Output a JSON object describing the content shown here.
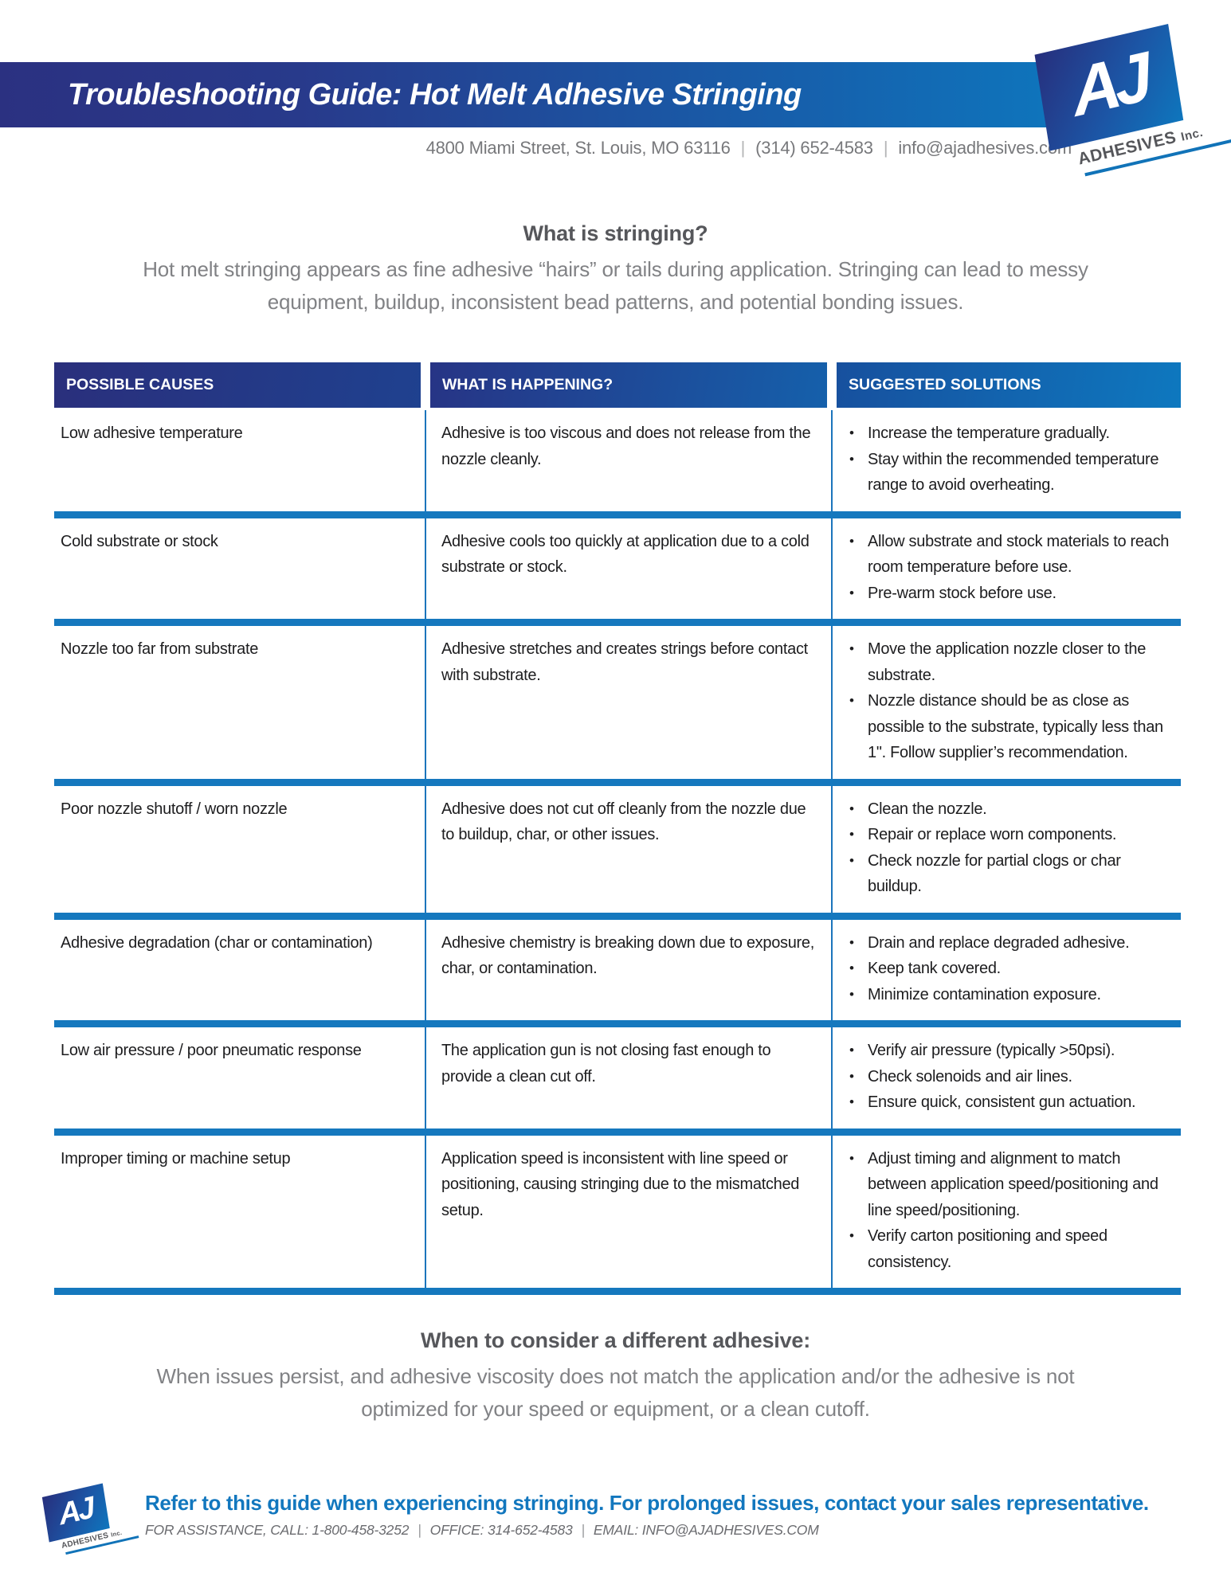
{
  "header": {
    "title": "Troubleshooting Guide: Hot Melt Adhesive Stringing",
    "contact_parts": [
      "4800 Miami Street, St. Louis, MO 63116",
      "(314) 652-4583",
      "info@ajadhesives.com"
    ],
    "separator": "|"
  },
  "logo": {
    "initials": "AJ",
    "name": "ADHESIVES",
    "suffix": "Inc."
  },
  "intro": {
    "heading": "What is stringing?",
    "body": "Hot melt stringing appears as fine adhesive “hairs” or tails during application. Stringing can lead to messy equipment, buildup, inconsistent bead patterns, and potential bonding issues."
  },
  "table": {
    "columns": [
      "POSSIBLE CAUSES",
      "WHAT IS HAPPENING?",
      "SUGGESTED SOLUTIONS"
    ],
    "rows": [
      {
        "cause": "Low adhesive temperature",
        "happening": "Adhesive is too viscous and does not release from the nozzle cleanly.",
        "solutions": [
          "Increase the temperature gradually.",
          "Stay within the recommended temperature range to avoid overheating."
        ]
      },
      {
        "cause": "Cold substrate or stock",
        "happening": "Adhesive cools too quickly at application due to a cold substrate or stock.",
        "solutions": [
          "Allow substrate and stock materials to reach room temperature before use.",
          "Pre-warm stock before use."
        ]
      },
      {
        "cause": "Nozzle too far from substrate",
        "happening": "Adhesive stretches and creates strings before contact with substrate.",
        "solutions": [
          "Move the application nozzle closer to the substrate.",
          "Nozzle distance should be as close as possible to the substrate, typically less than 1\". Follow supplier’s recommendation."
        ]
      },
      {
        "cause": "Poor nozzle shutoff / worn nozzle",
        "happening": "Adhesive does not cut off cleanly from the nozzle due to buildup, char, or other issues.",
        "solutions": [
          "Clean the nozzle.",
          "Repair or replace worn components.",
          "Check nozzle for partial clogs or char buildup."
        ]
      },
      {
        "cause": "Adhesive degradation (char or contamination)",
        "happening": "Adhesive chemistry is breaking down due to exposure, char, or contamination.",
        "solutions": [
          "Drain and replace degraded adhesive.",
          "Keep tank covered.",
          "Minimize contamination exposure."
        ]
      },
      {
        "cause": "Low air pressure / poor pneumatic response",
        "happening": "The application gun is not closing fast enough to provide a clean cut off.",
        "solutions": [
          "Verify air pressure (typically >50psi).",
          "Check solenoids and air lines.",
          "Ensure quick, consistent gun actuation."
        ]
      },
      {
        "cause": "Improper timing or machine setup",
        "happening": "Application speed is inconsistent with line speed or positioning, causing stringing due to the mismatched setup.",
        "solutions": [
          "Adjust timing and alignment to match between application speed/positioning and line speed/positioning.",
          "Verify carton positioning and speed consistency."
        ]
      }
    ]
  },
  "outro": {
    "heading": "When to consider a different adhesive:",
    "body": "When issues persist, and adhesive viscosity does not match the application and/or the adhesive is not optimized for your speed or equipment, or a clean cutoff."
  },
  "footer": {
    "message": "Refer to this guide when experiencing stringing. For prolonged issues, contact your sales representative.",
    "contact_parts": [
      "FOR ASSISTANCE, CALL: 1-800-458-3252",
      "OFFICE: 314-652-4583",
      "EMAIL: INFO@AJADHESIVES.COM"
    ],
    "separator": "|"
  },
  "colors": {
    "brand_navy": "#272f7d",
    "brand_blue": "#0e76bd",
    "table_line_blue": "#1578be",
    "footer_blue": "#1277be",
    "text_dark": "#1d1d1f",
    "text_gray": "#818285",
    "heading_gray": "#56575b"
  }
}
